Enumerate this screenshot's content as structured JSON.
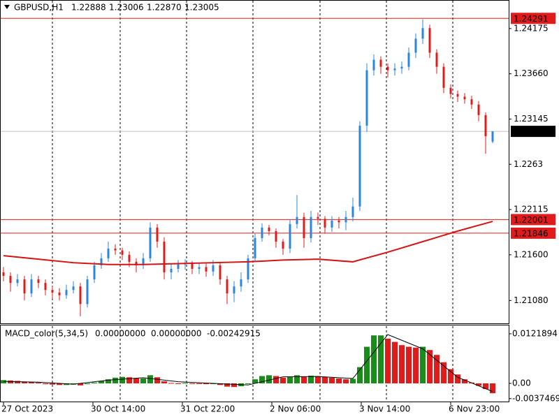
{
  "chart_data": {
    "type": "candlestick",
    "symbol": "GBPUSD,H1",
    "header_values": [
      "1.22888",
      "1.23006",
      "1.22870",
      "1.23005"
    ],
    "open": [
      1.214,
      1.2136,
      1.2128,
      1.2132,
      1.2116,
      1.2132,
      1.2128,
      1.212,
      1.2117,
      1.2114,
      1.212,
      1.2124,
      1.2104,
      1.2132,
      1.2148,
      1.2156,
      1.2167,
      1.2165,
      1.216,
      1.2152,
      1.2148,
      1.2156,
      1.2191,
      1.2175,
      1.214,
      1.2144,
      1.2149,
      1.215,
      1.2144,
      1.2146,
      1.2141,
      1.2148,
      1.2132,
      1.2116,
      1.2124,
      1.2132,
      1.2156,
      1.2179,
      1.2191,
      1.2187,
      1.2175,
      1.2167,
      1.2195,
      1.2203,
      1.2179,
      1.2203,
      1.2201,
      1.2191,
      1.2199,
      1.2197,
      1.2203,
      1.2215,
      1.2307,
      1.237,
      1.2382,
      1.2374,
      1.237,
      1.2372,
      1.2374,
      1.239,
      1.2406,
      1.2418,
      1.239,
      1.2374,
      1.235,
      1.2343,
      1.234,
      1.2337,
      1.2331,
      1.2319,
      1.22888
    ],
    "high": [
      1.2146,
      1.214,
      1.2138,
      1.2136,
      1.2138,
      1.2136,
      1.2132,
      1.2124,
      1.2122,
      1.2126,
      1.213,
      1.2128,
      1.2136,
      1.2152,
      1.2162,
      1.2175,
      1.2172,
      1.2168,
      1.2164,
      1.2156,
      1.2162,
      1.2197,
      1.2195,
      1.218,
      1.215,
      1.2154,
      1.2155,
      1.2153,
      1.2151,
      1.215,
      1.2154,
      1.2152,
      1.2136,
      1.213,
      1.214,
      1.216,
      1.2184,
      1.2196,
      1.2194,
      1.219,
      1.2178,
      1.22,
      1.2228,
      1.2208,
      1.221,
      1.2208,
      1.2204,
      1.2204,
      1.2203,
      1.221,
      1.2225,
      1.2312,
      1.2378,
      1.2388,
      1.2386,
      1.2378,
      1.2378,
      1.238,
      1.2396,
      1.2412,
      1.2428,
      1.2422,
      1.2394,
      1.2378,
      1.2354,
      1.2347,
      1.2344,
      1.2341,
      1.2335,
      1.2322,
      1.23006
    ],
    "low": [
      1.213,
      1.2118,
      1.2124,
      1.2108,
      1.2112,
      1.2122,
      1.2114,
      1.211,
      1.2108,
      1.211,
      1.2116,
      1.209,
      1.21,
      1.2128,
      1.2144,
      1.2152,
      1.216,
      1.2154,
      1.2146,
      1.214,
      1.2144,
      1.2152,
      1.2168,
      1.2132,
      1.2132,
      1.214,
      1.2143,
      1.2138,
      1.2138,
      1.2135,
      1.2136,
      1.2126,
      1.2104,
      1.2106,
      1.2118,
      1.2128,
      1.2152,
      1.2175,
      1.2182,
      1.2168,
      1.216,
      1.2162,
      1.219,
      1.2168,
      1.2174,
      1.2194,
      1.2184,
      1.2186,
      1.219,
      1.2188,
      1.2198,
      1.221,
      1.23,
      1.2364,
      1.2366,
      1.2362,
      1.2364,
      1.2366,
      1.237,
      1.2384,
      1.24,
      1.2384,
      1.2366,
      1.2344,
      1.2338,
      1.2334,
      1.2332,
      1.2326,
      1.2312,
      1.2275,
      1.2287
    ],
    "close": [
      1.2136,
      1.2128,
      1.2132,
      1.2116,
      1.2132,
      1.2128,
      1.212,
      1.2117,
      1.2114,
      1.212,
      1.2124,
      1.2104,
      1.2132,
      1.2148,
      1.2156,
      1.2167,
      1.2165,
      1.216,
      1.2152,
      1.2148,
      1.2156,
      1.2191,
      1.2175,
      1.214,
      1.2144,
      1.2149,
      1.215,
      1.2144,
      1.2146,
      1.2141,
      1.2148,
      1.2132,
      1.2116,
      1.2124,
      1.2132,
      1.2156,
      1.2179,
      1.2191,
      1.2187,
      1.2175,
      1.2167,
      1.2195,
      1.2203,
      1.2179,
      1.2203,
      1.2201,
      1.2191,
      1.2199,
      1.2197,
      1.2203,
      1.2215,
      1.2307,
      1.237,
      1.2382,
      1.2374,
      1.237,
      1.2372,
      1.2374,
      1.239,
      1.2406,
      1.2418,
      1.239,
      1.2374,
      1.235,
      1.2343,
      1.234,
      1.2337,
      1.2331,
      1.2319,
      1.2295,
      1.23005
    ],
    "up_color": "#2b86dc",
    "down_color": "#e01b1b",
    "ma": {
      "color": "#d41414",
      "x": [
        0,
        5,
        10,
        15,
        20,
        25,
        30,
        35,
        40,
        45,
        50,
        55,
        60,
        65,
        70
      ],
      "values": [
        1.2159,
        1.2155,
        1.2151,
        1.2149,
        1.2149,
        1.215,
        1.2151,
        1.2152,
        1.2154,
        1.2155,
        1.2152,
        1.2163,
        1.2175,
        1.2187,
        1.2198
      ]
    },
    "ylim": [
      1.2082,
      1.245
    ],
    "yticks": [
      {
        "value": 1.2108,
        "label": "1.21080"
      },
      {
        "value": 1.216,
        "label": "1.21600"
      },
      1.22115,
      1.2263,
      1.23145,
      {
        "value": 1.2366,
        "label": "1.23660"
      },
      1.24175
    ],
    "levels": [
      {
        "value": 1.24291,
        "color": "#e01b1b"
      },
      {
        "value": 1.22001,
        "color": "#e01b1b"
      },
      {
        "value": 1.21846,
        "color": "#e01b1b"
      },
      {
        "value": 1.23005,
        "color": "#000000",
        "line_color": "#c0c0c0"
      }
    ],
    "xticks": [
      {
        "value": 0,
        "label": "27 Oct 2023"
      },
      {
        "value": 12.8,
        "label": "30 Oct 14:00"
      },
      {
        "value": 25.6,
        "label": "31 Oct 22:00"
      },
      {
        "value": 38.4,
        "label": "2 Nov 06:00"
      },
      {
        "value": 51.2,
        "label": "3 Nov 14:00"
      },
      {
        "value": 64,
        "label": "6 Nov 23:00"
      }
    ],
    "vgrid": [
      7,
      16.7,
      26.2,
      35.7,
      45.3,
      54.8,
      64.3
    ],
    "macd": {
      "name": "MACD_color(5,34,5)",
      "header_values": [
        "0.00000000",
        "0.00000000",
        "-0.00242915"
      ],
      "values": [
        0.0008,
        0.0007,
        0.0006,
        0.0004,
        0.0003,
        0.0002,
        -0.0002,
        -0.0003,
        -0.0004,
        -0.0004,
        -0.0003,
        -0.0005,
        -0.0002,
        0.0002,
        0.0006,
        0.001,
        0.0014,
        0.0016,
        0.0015,
        0.0012,
        0.0012,
        0.002,
        0.0015,
        0.0005,
        0.0001,
        0.0,
        0.0001,
        0.0,
        -0.0001,
        -0.0002,
        0.0,
        -0.0004,
        -0.0008,
        -0.0009,
        -0.0007,
        0.0,
        0.001,
        0.0018,
        0.002,
        0.0018,
        0.0014,
        0.0016,
        0.002,
        0.0017,
        0.0019,
        0.0018,
        0.0016,
        0.0014,
        0.0012,
        0.001,
        0.0011,
        0.004,
        0.009,
        0.0118,
        0.0118,
        0.011,
        0.0102,
        0.0094,
        0.009,
        0.0088,
        0.009,
        0.0082,
        0.007,
        0.0052,
        0.0035,
        0.0022,
        0.001,
        0.0002,
        -0.0006,
        -0.0014,
        -0.00242915
      ],
      "up_color": "#1a8c1a",
      "down_color": "#e01b1b",
      "signal": {
        "color": "#000000",
        "x": [
          0,
          5,
          10,
          15,
          20,
          25,
          30,
          35,
          40,
          45,
          50,
          55,
          60,
          65,
          70
        ],
        "values": [
          0.0005,
          0.0003,
          -0.0002,
          0.0008,
          0.0014,
          0.0004,
          0.0,
          -0.0004,
          0.0016,
          0.0017,
          0.0012,
          0.012,
          0.0085,
          0.0015,
          -0.002
        ]
      },
      "ylim": [
        -0.00464,
        0.01425
      ],
      "yticks": [
        -0.0037469,
        {
          "value": 0,
          "label": "0.00"
        },
        0.0121894
      ]
    }
  }
}
